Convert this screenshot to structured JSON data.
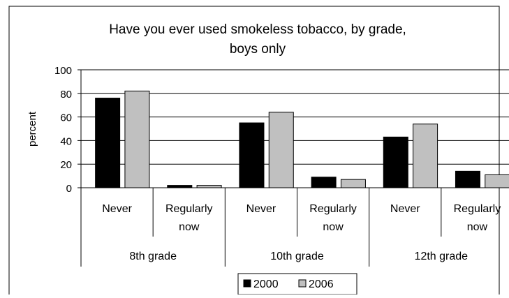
{
  "chart_data": {
    "type": "bar",
    "title_line1": "Have you ever used smokeless tobacco, by grade,",
    "title_line2": "boys only",
    "ylabel": "percent",
    "xlabel": "",
    "ylim": [
      0,
      100
    ],
    "yticks": [
      "0",
      "20",
      "40",
      "60",
      "80",
      "100"
    ],
    "grid": true,
    "legend_position": "bottom",
    "groups": [
      {
        "label": "8th grade",
        "categories": [
          {
            "label_line1": "Never",
            "label_line2": ""
          },
          {
            "label_line1": "Regularly",
            "label_line2": "now"
          }
        ]
      },
      {
        "label": "10th grade",
        "categories": [
          {
            "label_line1": "Never",
            "label_line2": ""
          },
          {
            "label_line1": "Regularly",
            "label_line2": "now"
          }
        ]
      },
      {
        "label": "12th grade",
        "categories": [
          {
            "label_line1": "Never",
            "label_line2": ""
          },
          {
            "label_line1": "Regularly",
            "label_line2": "now"
          }
        ]
      }
    ],
    "series": [
      {
        "name": "2000",
        "color": "#000000",
        "values": [
          76,
          2,
          55,
          9,
          43,
          14
        ]
      },
      {
        "name": "2006",
        "color": "#c0c0c0",
        "values": [
          82,
          2,
          64,
          7,
          54,
          11
        ]
      }
    ]
  }
}
